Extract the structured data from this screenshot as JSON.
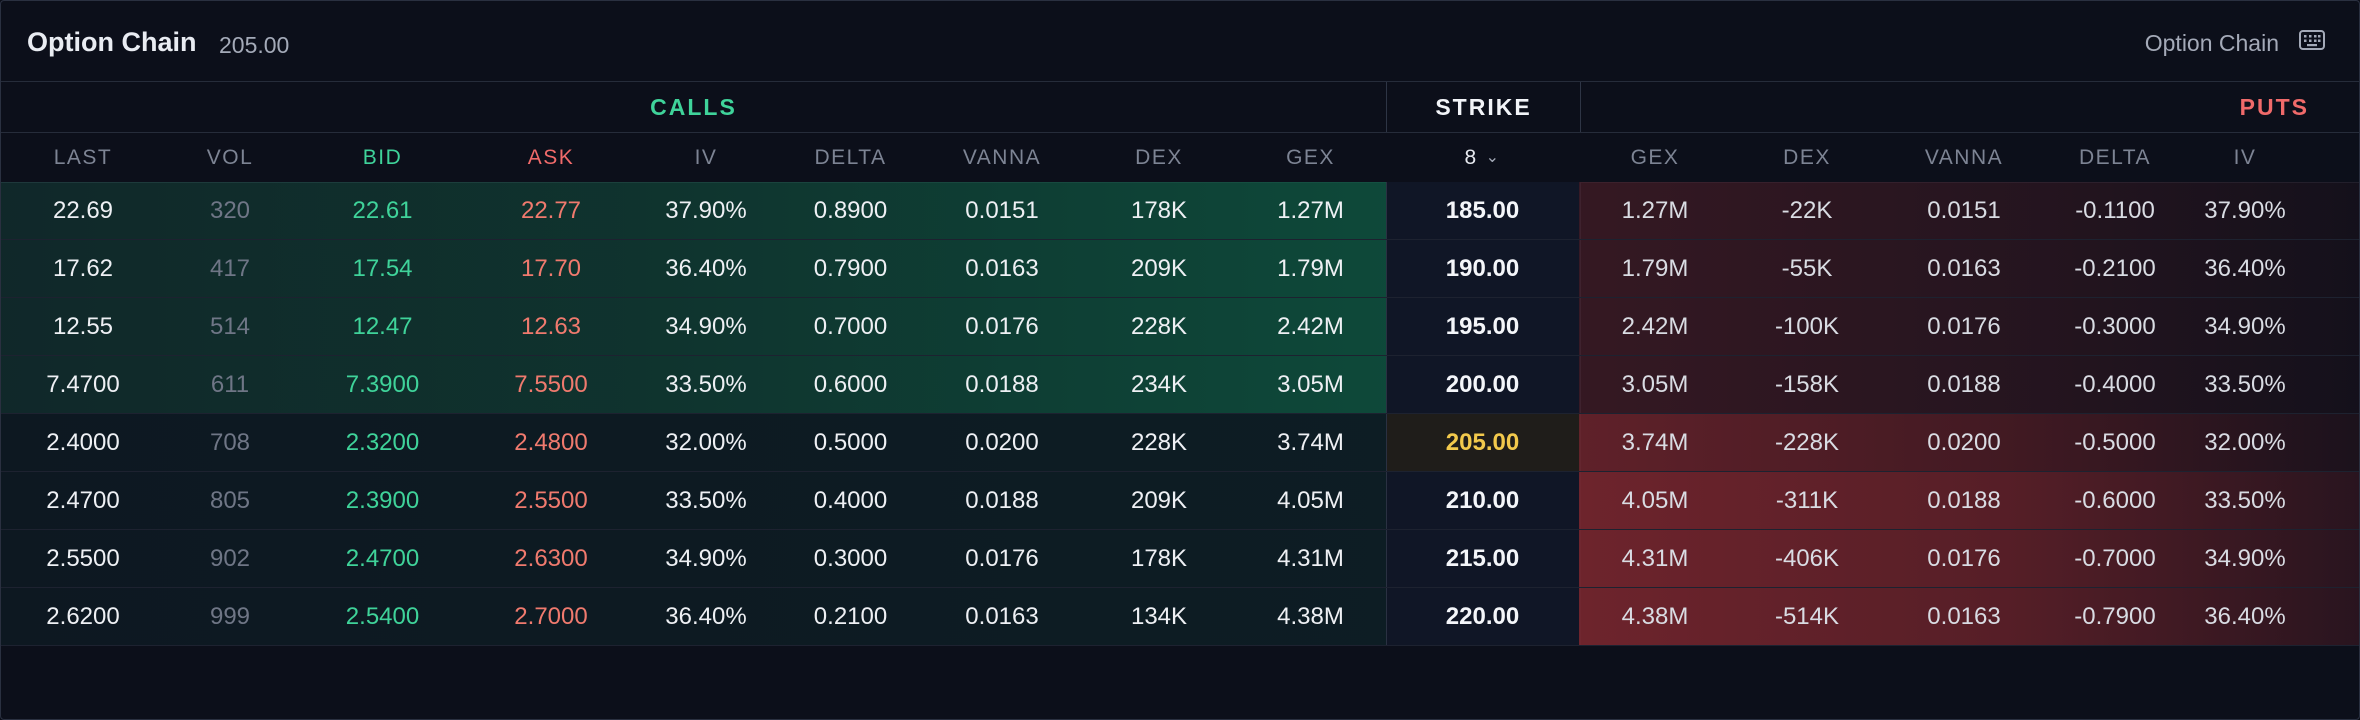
{
  "header": {
    "title": "Option Chain",
    "underlying_price": "205.00",
    "right_label": "Option Chain",
    "right_icon": "keyboard-icon"
  },
  "groups": {
    "calls": "CALLS",
    "strike": "STRIKE",
    "puts": "PUTS"
  },
  "columns": {
    "calls": [
      "LAST",
      "VOL",
      "BID",
      "ASK",
      "IV",
      "DELTA",
      "VANNA",
      "DEX",
      "GEX"
    ],
    "strike_selector": "8",
    "puts": [
      "GEX",
      "DEX",
      "VANNA",
      "DELTA",
      "IV"
    ]
  },
  "colors": {
    "calls": "#3fd39a",
    "puts": "#f06a6a",
    "atm_strike": "#f2c94c"
  },
  "rows": [
    {
      "strike": "185.00",
      "atm": false,
      "call": [
        "22.69",
        "320",
        "22.61",
        "22.77",
        "37.90%",
        "0.8900",
        "0.0151",
        "178K",
        "1.27M"
      ],
      "put": [
        "1.27M",
        "-22K",
        "0.0151",
        "-0.1100",
        "37.90%"
      ]
    },
    {
      "strike": "190.00",
      "atm": false,
      "call": [
        "17.62",
        "417",
        "17.54",
        "17.70",
        "36.40%",
        "0.7900",
        "0.0163",
        "209K",
        "1.79M"
      ],
      "put": [
        "1.79M",
        "-55K",
        "0.0163",
        "-0.2100",
        "36.40%"
      ]
    },
    {
      "strike": "195.00",
      "atm": false,
      "call": [
        "12.55",
        "514",
        "12.47",
        "12.63",
        "34.90%",
        "0.7000",
        "0.0176",
        "228K",
        "2.42M"
      ],
      "put": [
        "2.42M",
        "-100K",
        "0.0176",
        "-0.3000",
        "34.90%"
      ]
    },
    {
      "strike": "200.00",
      "atm": false,
      "call": [
        "7.4700",
        "611",
        "7.3900",
        "7.5500",
        "33.50%",
        "0.6000",
        "0.0188",
        "234K",
        "3.05M"
      ],
      "put": [
        "3.05M",
        "-158K",
        "0.0188",
        "-0.4000",
        "33.50%"
      ]
    },
    {
      "strike": "205.00",
      "atm": true,
      "call": [
        "2.4000",
        "708",
        "2.3200",
        "2.4800",
        "32.00%",
        "0.5000",
        "0.0200",
        "228K",
        "3.74M"
      ],
      "put": [
        "3.74M",
        "-228K",
        "0.0200",
        "-0.5000",
        "32.00%"
      ]
    },
    {
      "strike": "210.00",
      "atm": false,
      "call": [
        "2.4700",
        "805",
        "2.3900",
        "2.5500",
        "33.50%",
        "0.4000",
        "0.0188",
        "209K",
        "4.05M"
      ],
      "put": [
        "4.05M",
        "-311K",
        "0.0188",
        "-0.6000",
        "33.50%"
      ]
    },
    {
      "strike": "215.00",
      "atm": false,
      "call": [
        "2.5500",
        "902",
        "2.4700",
        "2.6300",
        "34.90%",
        "0.3000",
        "0.0176",
        "178K",
        "4.31M"
      ],
      "put": [
        "4.31M",
        "-406K",
        "0.0176",
        "-0.7000",
        "34.90%"
      ]
    },
    {
      "strike": "220.00",
      "atm": false,
      "call": [
        "2.6200",
        "999",
        "2.5400",
        "2.7000",
        "36.40%",
        "0.2100",
        "0.0163",
        "134K",
        "4.38M"
      ],
      "put": [
        "4.38M",
        "-514K",
        "0.0163",
        "-0.7900",
        "36.40%"
      ]
    }
  ]
}
